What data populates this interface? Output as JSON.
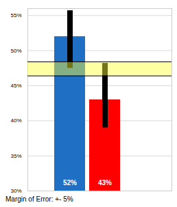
{
  "chart_data": {
    "type": "bar",
    "categories": [
      null,
      null
    ],
    "values": [
      52,
      43
    ],
    "value_labels": [
      "52%",
      "43%"
    ],
    "colors": [
      "#1f6fc5",
      "#ff0000"
    ],
    "data_labels": true,
    "error_low": [
      47.5,
      39
    ],
    "error_high": [
      55.7,
      48.2
    ],
    "band": [
      46.4,
      48.4
    ],
    "annotations": [
      "Margin of Error: +- 5%"
    ],
    "ylim": [
      30,
      56
    ],
    "yticks": [
      {
        "value": 30,
        "label": "30%"
      },
      {
        "value": 35,
        "label": "35%"
      },
      {
        "value": 40,
        "label": "40%"
      },
      {
        "value": 45,
        "label": "45%"
      },
      {
        "value": 50,
        "label": "50%"
      },
      {
        "value": 55,
        "label": "55%"
      }
    ],
    "grid": true
  }
}
